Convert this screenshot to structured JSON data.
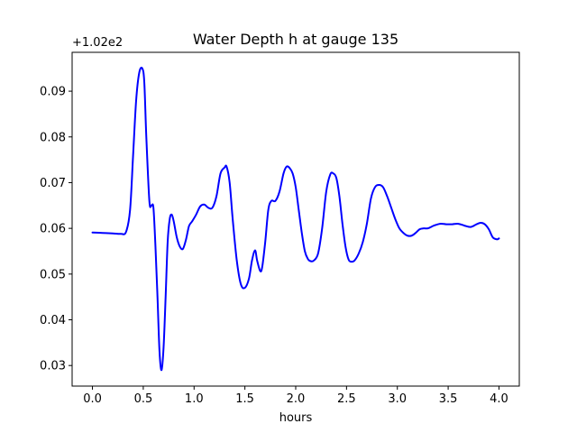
{
  "chart_data": {
    "type": "line",
    "title": "Water Depth h at gauge 135",
    "xlabel": "hours",
    "ylabel": "",
    "offset_text": "+1.02e2",
    "xlim": [
      -0.2,
      4.2
    ],
    "ylim": [
      0.0255,
      0.0985
    ],
    "xticks": [
      0.0,
      0.5,
      1.0,
      1.5,
      2.0,
      2.5,
      3.0,
      3.5,
      4.0
    ],
    "xtick_labels": [
      "0.0",
      "0.5",
      "1.0",
      "1.5",
      "2.0",
      "2.5",
      "3.0",
      "3.5",
      "4.0"
    ],
    "yticks": [
      0.03,
      0.04,
      0.05,
      0.06,
      0.07,
      0.08,
      0.09
    ],
    "ytick_labels": [
      "0.03",
      "0.04",
      "0.05",
      "0.06",
      "0.07",
      "0.08",
      "0.09"
    ],
    "grid": false,
    "series": [
      {
        "color": "#0000ff",
        "x": [
          0.0,
          0.1,
          0.2,
          0.28,
          0.33,
          0.37,
          0.4,
          0.43,
          0.46,
          0.49,
          0.51,
          0.53,
          0.56,
          0.58,
          0.6,
          0.62,
          0.64,
          0.66,
          0.68,
          0.7,
          0.72,
          0.74,
          0.76,
          0.78,
          0.8,
          0.83,
          0.86,
          0.89,
          0.92,
          0.95,
          0.98,
          1.02,
          1.06,
          1.1,
          1.14,
          1.18,
          1.22,
          1.26,
          1.3,
          1.32,
          1.35,
          1.38,
          1.42,
          1.46,
          1.5,
          1.54,
          1.57,
          1.6,
          1.62,
          1.65,
          1.67,
          1.7,
          1.73,
          1.76,
          1.8,
          1.84,
          1.88,
          1.91,
          1.94,
          1.97,
          2.0,
          2.03,
          2.06,
          2.09,
          2.12,
          2.15,
          2.18,
          2.22,
          2.26,
          2.3,
          2.34,
          2.37,
          2.4,
          2.43,
          2.46,
          2.49,
          2.52,
          2.55,
          2.58,
          2.62,
          2.66,
          2.7,
          2.74,
          2.78,
          2.82,
          2.86,
          2.9,
          2.94,
          2.98,
          3.02,
          3.06,
          3.1,
          3.14,
          3.18,
          3.22,
          3.26,
          3.3,
          3.36,
          3.42,
          3.48,
          3.54,
          3.6,
          3.66,
          3.72,
          3.78,
          3.82,
          3.86,
          3.9,
          3.94,
          3.98,
          4.0
        ],
        "y": [
          0.0591,
          0.059,
          0.0589,
          0.0588,
          0.0592,
          0.064,
          0.076,
          0.088,
          0.094,
          0.095,
          0.092,
          0.08,
          0.066,
          0.065,
          0.0645,
          0.056,
          0.045,
          0.033,
          0.029,
          0.034,
          0.045,
          0.057,
          0.062,
          0.063,
          0.0615,
          0.058,
          0.056,
          0.0555,
          0.0575,
          0.0605,
          0.0615,
          0.063,
          0.0648,
          0.0652,
          0.0645,
          0.0645,
          0.067,
          0.072,
          0.0733,
          0.0735,
          0.07,
          0.062,
          0.053,
          0.0478,
          0.047,
          0.049,
          0.053,
          0.0552,
          0.053,
          0.0507,
          0.0515,
          0.057,
          0.064,
          0.066,
          0.066,
          0.068,
          0.072,
          0.0735,
          0.0732,
          0.072,
          0.069,
          0.064,
          0.059,
          0.055,
          0.0533,
          0.0528,
          0.053,
          0.0545,
          0.06,
          0.068,
          0.0718,
          0.072,
          0.071,
          0.067,
          0.061,
          0.056,
          0.0532,
          0.0527,
          0.053,
          0.0545,
          0.057,
          0.061,
          0.0665,
          0.069,
          0.0695,
          0.069,
          0.067,
          0.0645,
          0.062,
          0.06,
          0.059,
          0.0584,
          0.0584,
          0.059,
          0.0598,
          0.06,
          0.06,
          0.0606,
          0.061,
          0.0609,
          0.0609,
          0.061,
          0.0606,
          0.0603,
          0.0609,
          0.0612,
          0.0609,
          0.0598,
          0.058,
          0.0576,
          0.0578
        ]
      }
    ]
  }
}
